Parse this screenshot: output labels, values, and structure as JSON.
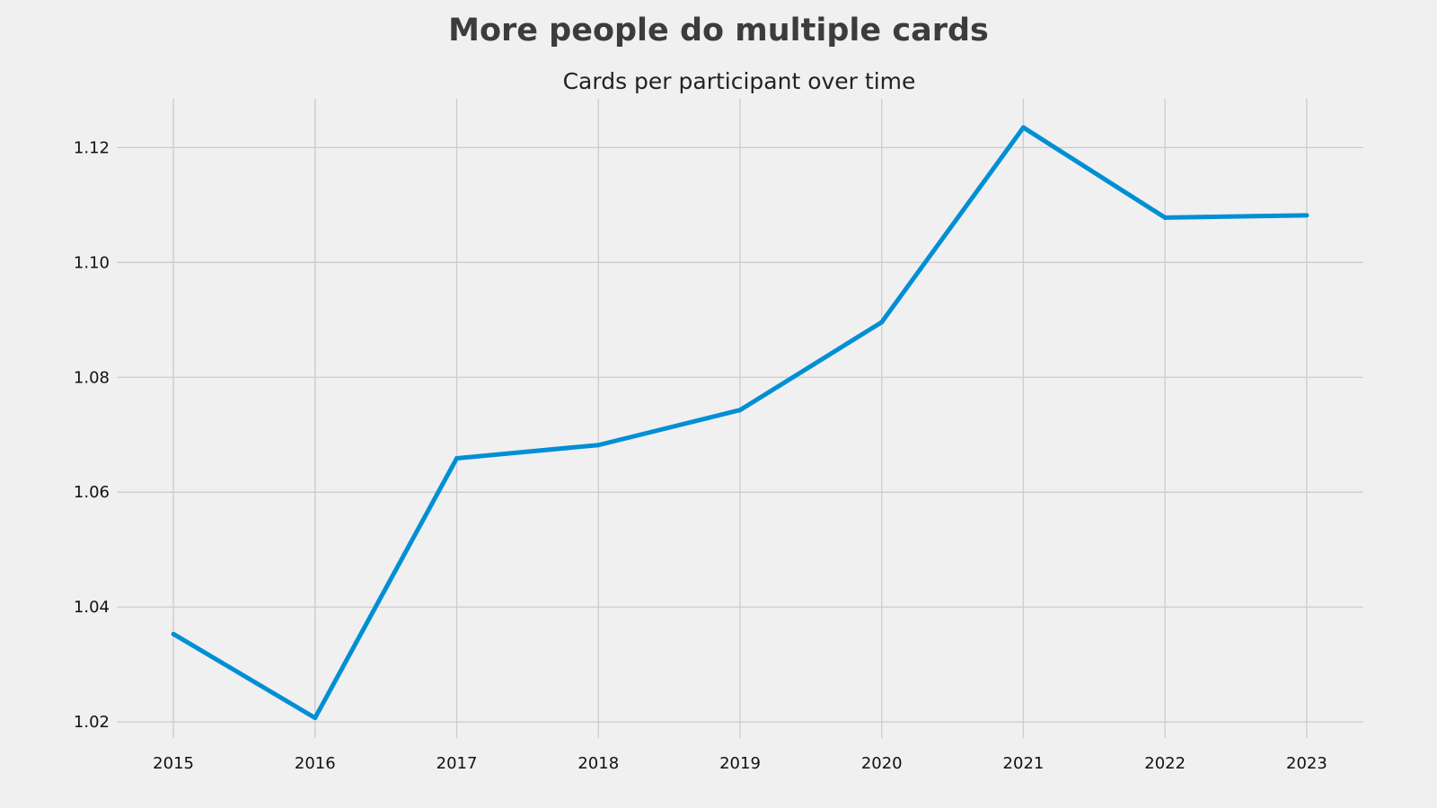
{
  "chart_data": {
    "type": "line",
    "title": "More people do multiple cards",
    "subtitle": "Cards per participant over time",
    "xlabel": "",
    "ylabel": "",
    "x": [
      2015,
      2016,
      2017,
      2018,
      2019,
      2020,
      2021,
      2022,
      2023
    ],
    "x_ticks": [
      "2015",
      "2016",
      "2017",
      "2018",
      "2019",
      "2020",
      "2021",
      "2022",
      "2023"
    ],
    "y_ticks": [
      "1.02",
      "1.04",
      "1.06",
      "1.08",
      "1.10",
      "1.12"
    ],
    "ylim": [
      1.0172,
      1.1285
    ],
    "xlim": [
      2014.6,
      2023.4
    ],
    "grid": true,
    "legend": "none",
    "series": [
      {
        "color": "#008fd5",
        "values": [
          1.0353,
          1.0207,
          1.0659,
          1.0682,
          1.0743,
          1.0896,
          1.1235,
          1.1078,
          1.1082
        ]
      }
    ]
  }
}
